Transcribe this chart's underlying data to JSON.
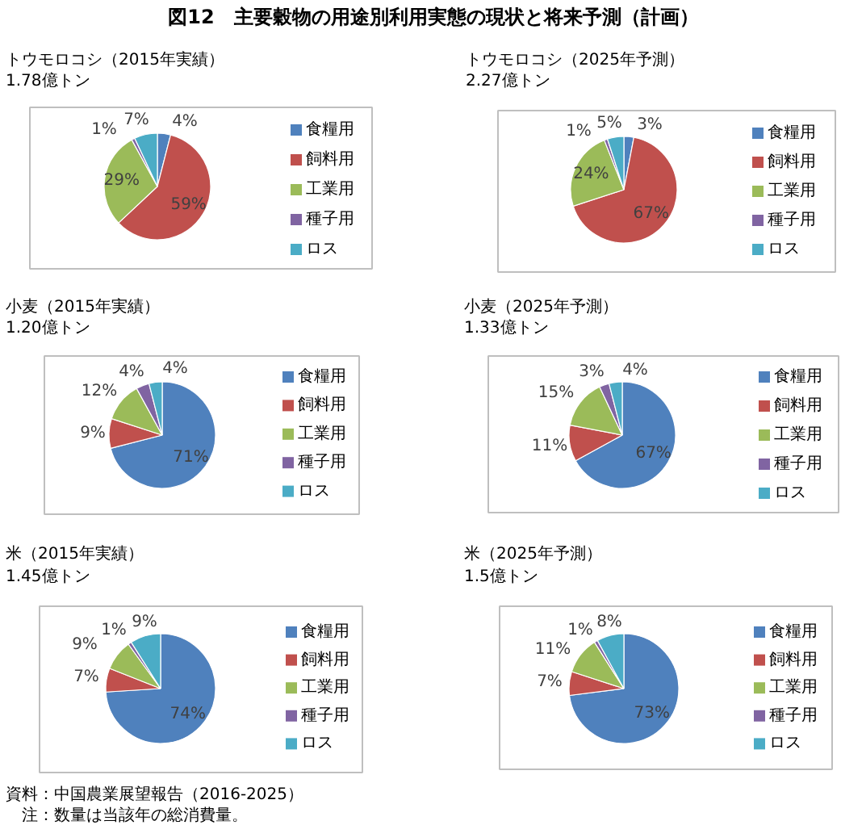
{
  "chart_data": [
    {
      "type": "other",
      "title": "図12　主要穀物の用途別利用実態の現状と将来予測（計画）"
    },
    {
      "type": "pie",
      "title": "トウモロコシ（2015年実績）",
      "subtitle": "1.78億トン",
      "categories": [
        "食糧用",
        "飼料用",
        "工業用",
        "種子用",
        "ロス"
      ],
      "values": [
        4,
        59,
        29,
        1,
        7
      ],
      "colors": [
        "#4f81bd",
        "#c0504d",
        "#9bbb59",
        "#8064a2",
        "#4bacc6"
      ],
      "value_labels": [
        "4%",
        "59%",
        "29%",
        "1%",
        "7%"
      ],
      "legend": "right"
    },
    {
      "type": "pie",
      "title": "トウモロコシ（2025年予測）",
      "subtitle": "2.27億トン",
      "categories": [
        "食糧用",
        "飼料用",
        "工業用",
        "種子用",
        "ロス"
      ],
      "values": [
        3,
        67,
        24,
        1,
        5
      ],
      "colors": [
        "#4f81bd",
        "#c0504d",
        "#9bbb59",
        "#8064a2",
        "#4bacc6"
      ],
      "value_labels": [
        "3%",
        "67%",
        "24%",
        "1%",
        "5%"
      ],
      "legend": "right"
    },
    {
      "type": "pie",
      "title": "小麦（2015年実績）",
      "subtitle": "1.20億トン",
      "categories": [
        "食糧用",
        "飼料用",
        "工業用",
        "種子用",
        "ロス"
      ],
      "values": [
        71,
        9,
        12,
        4,
        4
      ],
      "colors": [
        "#4f81bd",
        "#c0504d",
        "#9bbb59",
        "#8064a2",
        "#4bacc6"
      ],
      "value_labels": [
        "71%",
        "9%",
        "12%",
        "4%",
        "4%"
      ],
      "legend": "right"
    },
    {
      "type": "pie",
      "title": "小麦（2025年予測）",
      "subtitle": "1.33億トン",
      "categories": [
        "食糧用",
        "飼料用",
        "工業用",
        "種子用",
        "ロス"
      ],
      "values": [
        67,
        11,
        15,
        3,
        4
      ],
      "colors": [
        "#4f81bd",
        "#c0504d",
        "#9bbb59",
        "#8064a2",
        "#4bacc6"
      ],
      "value_labels": [
        "67%",
        "11%",
        "15%",
        "3%",
        "4%"
      ],
      "legend": "right"
    },
    {
      "type": "pie",
      "title": "米（2015年実績）",
      "subtitle": "1.45億トン",
      "categories": [
        "食糧用",
        "飼料用",
        "工業用",
        "種子用",
        "ロス"
      ],
      "values": [
        74,
        7,
        9,
        1,
        9
      ],
      "colors": [
        "#4f81bd",
        "#c0504d",
        "#9bbb59",
        "#8064a2",
        "#4bacc6"
      ],
      "value_labels": [
        "74%",
        "7%",
        "9%",
        "1%",
        "9%"
      ],
      "legend": "right"
    },
    {
      "type": "pie",
      "title": "米（2025年予測）",
      "subtitle": "1.5億トン",
      "categories": [
        "食糧用",
        "飼料用",
        "工業用",
        "種子用",
        "ロス"
      ],
      "values": [
        73,
        7,
        11,
        1,
        8
      ],
      "colors": [
        "#4f81bd",
        "#c0504d",
        "#9bbb59",
        "#8064a2",
        "#4bacc6"
      ],
      "value_labels": [
        "73%",
        "7%",
        "11%",
        "1%",
        "8%"
      ],
      "legend": "right"
    },
    {
      "type": "other",
      "annotations": [
        "資料：中国農業展望報告（2016-2025）",
        "注：数量は当該年の総消費量。"
      ]
    }
  ]
}
